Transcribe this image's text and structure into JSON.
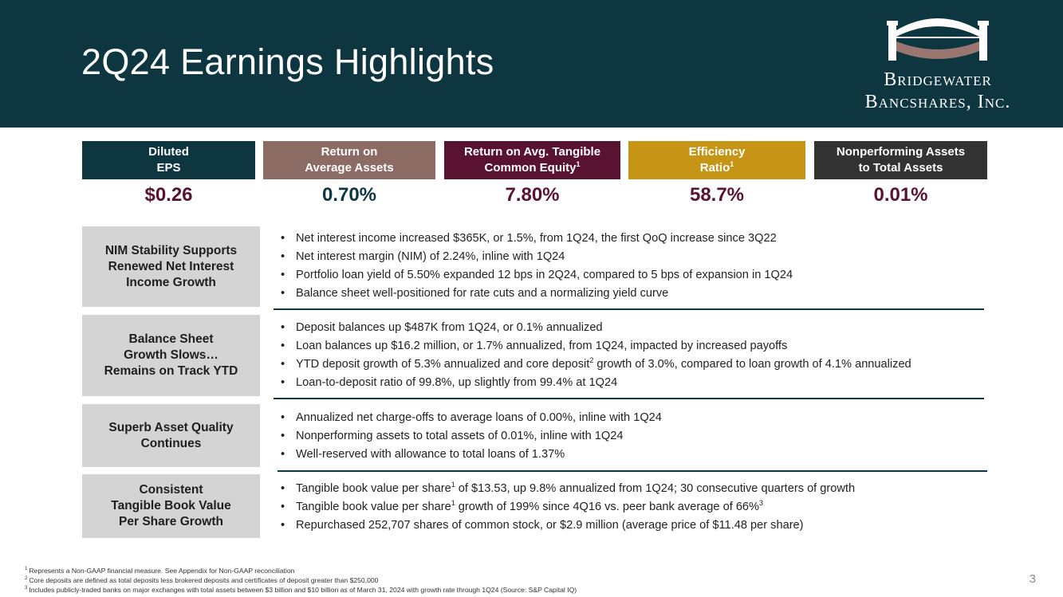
{
  "header": {
    "title": "2Q24 Earnings Highlights",
    "logo_line1": "Bridgewater",
    "logo_line2": "Bancshares, Inc."
  },
  "colors": {
    "header_bg": "#0d3640",
    "kpi1": "#0d3640",
    "kpi2": "#8c6b64",
    "kpi3": "#5a1231",
    "kpi4": "#c79516",
    "kpi5": "#333333",
    "category_bg": "#d4d4d4"
  },
  "kpis": [
    {
      "line1": "Diluted",
      "line2": "EPS",
      "sup": "",
      "value": "$0.26",
      "value_color": "#5a1231"
    },
    {
      "line1": "Return on",
      "line2": "Average Assets",
      "sup": "",
      "value": "0.70%",
      "value_color": "#0d3640"
    },
    {
      "line1": "Return on Avg. Tangible",
      "line2": "Common Equity",
      "sup": "1",
      "value": "7.80%",
      "value_color": "#5a1231"
    },
    {
      "line1": "Efficiency",
      "line2": "Ratio",
      "sup": "1",
      "value": "58.7%",
      "value_color": "#5a1231"
    },
    {
      "line1": "Nonperforming Assets",
      "line2": "to Total Assets",
      "sup": "",
      "value": "0.01%",
      "value_color": "#5a1231"
    }
  ],
  "sections": [
    {
      "label": [
        "NIM Stability Supports",
        "Renewed Net Interest",
        "Income Growth"
      ],
      "bullets": [
        "Net interest income increased $365K, or 1.5%, from 1Q24, the first QoQ increase since 3Q22",
        "Net interest margin (NIM) of 2.24%, inline with 1Q24",
        "Portfolio loan yield of 5.50% expanded 12 bps in 2Q24, compared to 5 bps of expansion in 1Q24",
        "Balance sheet well-positioned for rate cuts and a normalizing yield curve"
      ]
    },
    {
      "label": [
        "Balance Sheet",
        "Growth Slows…",
        "Remains on Track YTD"
      ],
      "bullets": [
        "Deposit balances up $487K from 1Q24, or 0.1% annualized",
        "Loan balances up $16.2 million, or 1.7% annualized, from 1Q24, impacted by increased payoffs",
        {
          "a": "YTD deposit growth of 5.3% annualized and core deposit",
          "sup": "2",
          "b": " growth of 3.0%, compared to loan growth of 4.1% annualized"
        },
        "Loan-to-deposit ratio of 99.8%, up slightly from 99.4% at 1Q24"
      ]
    },
    {
      "label": [
        "Superb Asset Quality",
        "Continues"
      ],
      "bullets": [
        "Annualized net charge-offs to average loans of 0.00%, inline with 1Q24",
        "Nonperforming assets to total assets of 0.01%, inline with 1Q24",
        "Well-reserved with allowance to total loans of 1.37%"
      ]
    },
    {
      "label": [
        "Consistent",
        "Tangible Book Value",
        "Per Share Growth"
      ],
      "bullets": [
        {
          "a": "Tangible book value per share",
          "sup": "1",
          "b": " of $13.53, up 9.8% annualized from 1Q24; 30 consecutive quarters of growth"
        },
        {
          "a": "Tangible book value per share",
          "sup": "1",
          "b": " growth of 199% since 4Q16 vs. peer bank average of 66%",
          "sup2": "3"
        },
        "Repurchased 252,707 shares of common stock, or $2.9 million (average price of $11.48 per share)"
      ]
    }
  ],
  "footnotes": [
    {
      "num": "1",
      "text": "Represents a Non-GAAP financial measure. See Appendix for Non-GAAP reconciliation"
    },
    {
      "num": "2",
      "text": "Core deposits are defined as total deposits less brokered deposits and certificates of deposit greater than $250,000"
    },
    {
      "num": "3",
      "text": "Includes publicly-traded banks on major exchanges with total assets between $3 billion and $10 billion as of March 31, 2024 with growth rate through 1Q24 (Source: S&P Capital IQ)"
    }
  ],
  "page_number": "3",
  "bullet_glyph": "•"
}
